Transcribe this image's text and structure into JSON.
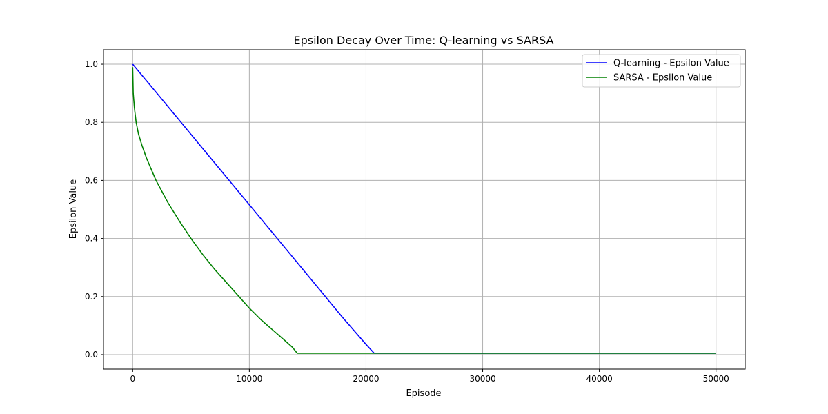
{
  "chart_data": {
    "type": "line",
    "title": "Epsilon Decay Over Time: Q-learning vs SARSA",
    "xlabel": "Episode",
    "ylabel": "Epsilon Value",
    "xlim": [
      -2500,
      52500
    ],
    "ylim": [
      -0.05,
      1.05
    ],
    "x_ticks": [
      0,
      10000,
      20000,
      30000,
      40000,
      50000
    ],
    "x_tick_labels": [
      "0",
      "10000",
      "20000",
      "30000",
      "40000",
      "50000"
    ],
    "y_ticks": [
      0.0,
      0.2,
      0.4,
      0.6,
      0.8,
      1.0
    ],
    "y_tick_labels": [
      "0.0",
      "0.2",
      "0.4",
      "0.6",
      "0.8",
      "1.0"
    ],
    "grid": true,
    "legend_position": "top-right",
    "series": [
      {
        "name": "Q-learning - Epsilon Value",
        "color": "#0000ff",
        "points": [
          [
            0,
            1.0
          ],
          [
            2000,
            0.904
          ],
          [
            4000,
            0.807
          ],
          [
            6000,
            0.71
          ],
          [
            8000,
            0.613
          ],
          [
            10000,
            0.516
          ],
          [
            12000,
            0.419
          ],
          [
            14000,
            0.322
          ],
          [
            16000,
            0.225
          ],
          [
            18000,
            0.128
          ],
          [
            20000,
            0.035
          ],
          [
            20700,
            0.005
          ],
          [
            30000,
            0.005
          ],
          [
            40000,
            0.005
          ],
          [
            50000,
            0.005
          ]
        ]
      },
      {
        "name": "SARSA - Epsilon Value",
        "color": "#008000",
        "points": [
          [
            0,
            0.99
          ],
          [
            50,
            0.9
          ],
          [
            150,
            0.85
          ],
          [
            300,
            0.8
          ],
          [
            500,
            0.76
          ],
          [
            800,
            0.72
          ],
          [
            1200,
            0.675
          ],
          [
            2000,
            0.6
          ],
          [
            3000,
            0.525
          ],
          [
            4000,
            0.46
          ],
          [
            5000,
            0.4
          ],
          [
            6000,
            0.345
          ],
          [
            7000,
            0.295
          ],
          [
            8000,
            0.25
          ],
          [
            9000,
            0.205
          ],
          [
            10000,
            0.16
          ],
          [
            11000,
            0.12
          ],
          [
            12000,
            0.085
          ],
          [
            13000,
            0.05
          ],
          [
            13700,
            0.025
          ],
          [
            14100,
            0.005
          ],
          [
            20000,
            0.005
          ],
          [
            30000,
            0.005
          ],
          [
            40000,
            0.005
          ],
          [
            50000,
            0.005
          ]
        ]
      }
    ]
  }
}
